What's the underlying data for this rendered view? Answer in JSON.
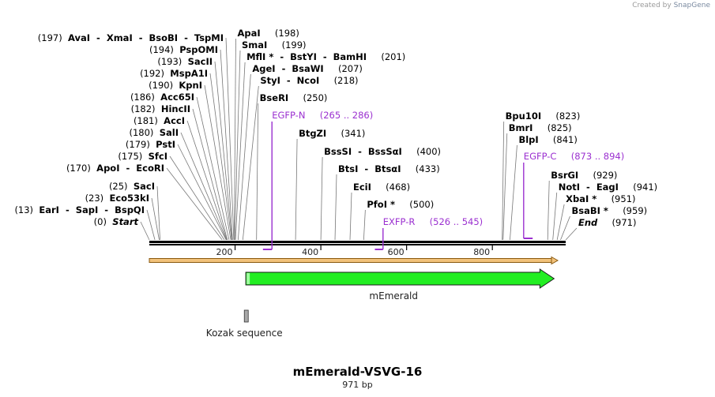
{
  "credit": {
    "prefix": "Created by",
    "brand": "SnapGene"
  },
  "map": {
    "name": "mEmerald-VSVG-16",
    "length_label": "971 bp",
    "length_bp": 971,
    "ticks": [
      {
        "pos": 200,
        "label": "200"
      },
      {
        "pos": 400,
        "label": "400"
      },
      {
        "pos": 600,
        "label": "600"
      },
      {
        "pos": 800,
        "label": "800"
      }
    ]
  },
  "left_sites": [
    {
      "pos": 197,
      "num": "(197)",
      "names": [
        "AvaI",
        "XmaI",
        "BsoBI",
        "TspMI"
      ]
    },
    {
      "pos": 194,
      "num": "(194)",
      "names": [
        "PspOMI"
      ]
    },
    {
      "pos": 193,
      "num": "(193)",
      "names": [
        "SacII"
      ]
    },
    {
      "pos": 192,
      "num": "(192)",
      "names": [
        "MspA1I"
      ]
    },
    {
      "pos": 190,
      "num": "(190)",
      "names": [
        "KpnI"
      ]
    },
    {
      "pos": 186,
      "num": "(186)",
      "names": [
        "Acc65I"
      ]
    },
    {
      "pos": 182,
      "num": "(182)",
      "names": [
        "HincII"
      ]
    },
    {
      "pos": 181,
      "num": "(181)",
      "names": [
        "AccI"
      ]
    },
    {
      "pos": 180,
      "num": "(180)",
      "names": [
        "SalI"
      ]
    },
    {
      "pos": 179,
      "num": "(179)",
      "names": [
        "PstI"
      ]
    },
    {
      "pos": 175,
      "num": "(175)",
      "names": [
        "SfcI"
      ]
    },
    {
      "pos": 170,
      "num": "(170)",
      "names": [
        "ApoI",
        "EcoRI"
      ]
    },
    {
      "pos": 25,
      "num": "(25)",
      "names": [
        "SacI"
      ]
    },
    {
      "pos": 23,
      "num": "(23)",
      "names": [
        "Eco53kI"
      ]
    },
    {
      "pos": 13,
      "num": "(13)",
      "names": [
        "EarI",
        "SapI",
        "BspQI"
      ]
    },
    {
      "pos": 0,
      "num": "(0)",
      "names": [
        "Start"
      ],
      "italic": true
    }
  ],
  "right_sites": [
    {
      "pos": 198,
      "num": "(198)",
      "names": [
        "ApaI"
      ]
    },
    {
      "pos": 199,
      "num": "(199)",
      "names": [
        "SmaI"
      ]
    },
    {
      "pos": 201,
      "num": "(201)",
      "names": [
        "MflI *",
        "BstYI",
        "BamHI"
      ]
    },
    {
      "pos": 207,
      "num": "(207)",
      "names": [
        "AgeI",
        "BsaWI"
      ]
    },
    {
      "pos": 218,
      "num": "(218)",
      "names": [
        "StyI",
        "NcoI"
      ]
    },
    {
      "pos": 250,
      "num": "(250)",
      "names": [
        "BseRI"
      ]
    },
    {
      "pos": 341,
      "num": "(341)",
      "names": [
        "BtgZI"
      ]
    },
    {
      "pos": 400,
      "num": "(400)",
      "names": [
        "BssSI",
        "BssSαI"
      ]
    },
    {
      "pos": 433,
      "num": "(433)",
      "names": [
        "BtsI",
        "BtsαI"
      ]
    },
    {
      "pos": 468,
      "num": "(468)",
      "names": [
        "EciI"
      ]
    },
    {
      "pos": 500,
      "num": "(500)",
      "names": [
        "PfoI *"
      ]
    },
    {
      "pos": 823,
      "num": "(823)",
      "names": [
        "Bpu10I"
      ]
    },
    {
      "pos": 825,
      "num": "(825)",
      "names": [
        "BmrI"
      ]
    },
    {
      "pos": 841,
      "num": "(841)",
      "names": [
        "BlpI"
      ]
    },
    {
      "pos": 929,
      "num": "(929)",
      "names": [
        "BsrGI"
      ]
    },
    {
      "pos": 941,
      "num": "(941)",
      "names": [
        "NotI",
        "EagI"
      ]
    },
    {
      "pos": 951,
      "num": "(951)",
      "names": [
        "XbaI *"
      ]
    },
    {
      "pos": 959,
      "num": "(959)",
      "names": [
        "BsaBI *"
      ]
    },
    {
      "pos": 971,
      "num": "(971)",
      "names": [
        "End"
      ],
      "italic": true
    }
  ],
  "primers": [
    {
      "name": "EGFP-N",
      "range": "(265 .. 286)",
      "start": 265,
      "end": 286,
      "strand": "reverse"
    },
    {
      "name": "EXFP-R",
      "range": "(526 .. 545)",
      "start": 526,
      "end": 545,
      "strand": "reverse"
    },
    {
      "name": "EGFP-C",
      "range": "(873 .. 894)",
      "start": 873,
      "end": 894,
      "strand": "forward"
    }
  ],
  "features": [
    {
      "name": "mEmerald",
      "start": 225,
      "end": 944,
      "color": "#22ee22",
      "type": "cds"
    },
    {
      "name": "Kozak sequence",
      "start": 216,
      "end": 226,
      "color": "#a8a8a8",
      "type": "misc"
    }
  ],
  "colors": {
    "primer": "#9b30d0",
    "insert": "#f2c27b",
    "insert_border": "#8a5a10",
    "line": "#555555"
  }
}
